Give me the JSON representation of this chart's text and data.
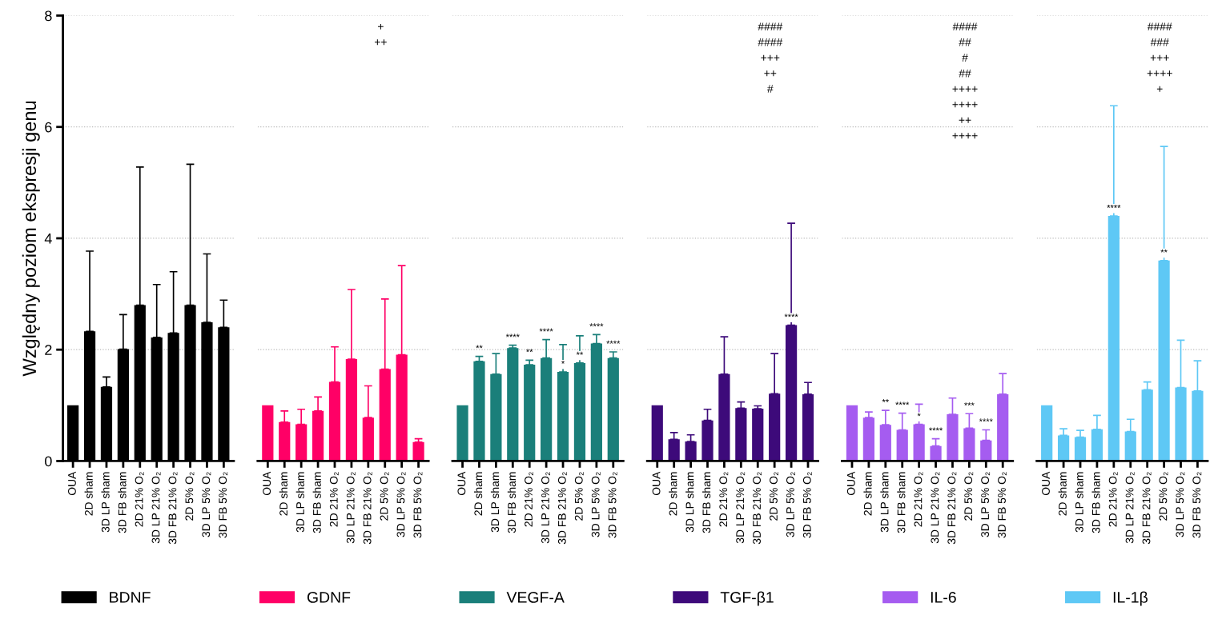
{
  "chart_data": [
    {
      "type": "bar",
      "ylabel": "Względny poziom ekspresji genu",
      "categories": [
        "OUA",
        "2D sham",
        "3D LP sham",
        "3D FB sham",
        "2D 21% O₂",
        "3D LP 21% O₂",
        "3D FB 21% O₂",
        "2D 5% O₂",
        "3D LP 5% O₂",
        "3D FB 5% O₂"
      ],
      "ylim": [
        0,
        8
      ],
      "yticks": [
        0,
        2,
        4,
        6,
        8
      ],
      "grid": "y",
      "legend": "bottom",
      "series": [
        {
          "name": "BDNF",
          "color": "#000000",
          "values": [
            1.0,
            2.33,
            1.33,
            2.01,
            2.8,
            2.22,
            2.3,
            2.8,
            2.49,
            2.4
          ],
          "errors": [
            null,
            [
              2.33,
              3.77
            ],
            [
              1.33,
              1.51
            ],
            [
              2.01,
              2.63
            ],
            [
              2.8,
              5.28
            ],
            [
              2.22,
              3.17
            ],
            [
              2.3,
              3.4
            ],
            [
              2.8,
              5.33
            ],
            [
              2.49,
              3.72
            ],
            [
              2.4,
              2.89
            ]
          ]
        }
      ]
    },
    {
      "type": "bar",
      "categories": [
        "OUA",
        "2D sham",
        "3D LP sham",
        "3D FB sham",
        "2D 21% O₂",
        "3D LP 21% O₂",
        "3D FB 21% O₂",
        "2D 5% O₂",
        "3D LP 5% O₂",
        "3D FB 5% O₂"
      ],
      "ylim": [
        0,
        8
      ],
      "yticks": [
        0,
        2,
        4,
        6,
        8
      ],
      "grid": "y",
      "legend": "bottom",
      "tick_labels": "x",
      "series": [
        {
          "name": "GDNF",
          "color": "#ff0066",
          "values": [
            1.0,
            0.7,
            0.66,
            0.9,
            1.42,
            1.83,
            0.78,
            1.65,
            1.91,
            0.34
          ],
          "errors": [
            null,
            [
              0.7,
              0.9
            ],
            [
              0.66,
              0.93
            ],
            [
              0.9,
              1.15
            ],
            [
              1.42,
              2.05
            ],
            [
              1.83,
              3.08
            ],
            [
              0.78,
              1.35
            ],
            [
              1.65,
              2.91
            ],
            [
              1.91,
              3.51
            ],
            [
              0.34,
              0.4
            ]
          ]
        }
      ],
      "annotations": [
        "+",
        "++"
      ]
    },
    {
      "type": "bar",
      "categories": [
        "OUA",
        "2D sham",
        "3D LP sham",
        "3D FB sham",
        "2D 21% O₂",
        "3D LP 21% O₂",
        "3D FB 21% O₂",
        "2D 5% O₂",
        "3D LP 5% O₂",
        "3D FB 5% O₂"
      ],
      "ylim": [
        0,
        8
      ],
      "yticks": [
        0,
        2,
        4,
        6,
        8
      ],
      "grid": "y",
      "legend": "bottom",
      "tick_labels": "x",
      "series": [
        {
          "name": "VEGF-A",
          "color": "#1a7f7a",
          "values": [
            1.0,
            1.79,
            1.56,
            2.03,
            1.73,
            1.85,
            1.6,
            1.76,
            2.11,
            1.85
          ],
          "errors": [
            null,
            [
              1.79,
              1.88
            ],
            [
              1.56,
              1.93
            ],
            [
              2.03,
              2.08
            ],
            [
              1.73,
              1.81
            ],
            [
              1.85,
              2.18
            ],
            [
              1.6,
              2.09
            ],
            [
              1.76,
              2.25
            ],
            [
              2.11,
              2.27
            ],
            [
              1.85,
              1.96
            ]
          ],
          "value_labels": [
            null,
            "**",
            null,
            "****",
            "**",
            "****",
            "*",
            "**",
            "****",
            "****"
          ]
        }
      ]
    },
    {
      "type": "bar",
      "categories": [
        "OUA",
        "2D sham",
        "3D LP sham",
        "3D FB sham",
        "2D 21% O₂",
        "3D LP 21% O₂",
        "3D FB 21% O₂",
        "2D 5% O₂",
        "3D LP 5% O₂",
        "3D FB 5% O₂"
      ],
      "ylim": [
        0,
        8
      ],
      "yticks": [
        0,
        2,
        4,
        6,
        8
      ],
      "grid": "y",
      "legend": "bottom",
      "tick_labels": "x",
      "series": [
        {
          "name": "TGF-β1",
          "color": "#3d0a7a",
          "values": [
            1.0,
            0.39,
            0.35,
            0.73,
            1.56,
            0.95,
            0.94,
            1.21,
            2.44,
            1.2
          ],
          "errors": [
            null,
            [
              0.39,
              0.51
            ],
            [
              0.35,
              0.47
            ],
            [
              0.73,
              0.93
            ],
            [
              1.56,
              2.23
            ],
            [
              0.95,
              1.06
            ],
            [
              0.94,
              0.99
            ],
            [
              1.21,
              1.93
            ],
            [
              2.44,
              4.27
            ],
            [
              1.2,
              1.41
            ]
          ],
          "value_labels": [
            null,
            null,
            null,
            null,
            null,
            null,
            null,
            null,
            "****",
            null
          ]
        }
      ],
      "annotations": [
        "####",
        "####",
        "+++",
        "++",
        "#"
      ]
    },
    {
      "type": "bar",
      "categories": [
        "OUA",
        "2D sham",
        "3D LP sham",
        "3D FB sham",
        "2D 21% O₂",
        "3D LP 21% O₂",
        "3D FB 21% O₂",
        "2D 5% O₂",
        "3D LP 5% O₂",
        "3D FB 5% O₂"
      ],
      "ylim": [
        0,
        8
      ],
      "yticks": [
        0,
        2,
        4,
        6,
        8
      ],
      "grid": "y",
      "legend": "bottom",
      "tick_labels": "x",
      "series": [
        {
          "name": "IL-6",
          "color": "#a55cf0",
          "values": [
            1.0,
            0.78,
            0.65,
            0.56,
            0.66,
            0.27,
            0.84,
            0.59,
            0.37,
            1.2
          ],
          "errors": [
            null,
            [
              0.78,
              0.88
            ],
            [
              0.65,
              0.91
            ],
            [
              0.56,
              0.86
            ],
            [
              0.66,
              1.02
            ],
            [
              0.27,
              0.4
            ],
            [
              0.84,
              1.13
            ],
            [
              0.59,
              0.85
            ],
            [
              0.37,
              0.56
            ],
            [
              1.2,
              1.57
            ]
          ],
          "value_labels": [
            null,
            null,
            "**",
            "****",
            "*",
            "****",
            null,
            "***",
            "****",
            null
          ]
        }
      ],
      "annotations": [
        "####",
        "##",
        "#",
        "##",
        "++++",
        "++++",
        "++",
        "++++"
      ]
    },
    {
      "type": "bar",
      "categories": [
        "OUA",
        "2D sham",
        "3D LP sham",
        "3D FB sham",
        "2D 21% O₂",
        "3D LP 21% O₂",
        "3D FB 21% O₂",
        "2D 5% O₂",
        "3D LP 5% O₂",
        "3D FB 5% O₂"
      ],
      "ylim": [
        0,
        8
      ],
      "yticks": [
        0,
        2,
        4,
        6,
        8
      ],
      "grid": "y",
      "legend": "bottom",
      "tick_labels": "x",
      "series": [
        {
          "name": "IL-1β",
          "color": "#5ec8f5",
          "values": [
            1.0,
            0.46,
            0.43,
            0.57,
            4.4,
            0.53,
            1.28,
            3.6,
            1.32,
            1.26
          ],
          "errors": [
            null,
            [
              0.46,
              0.58
            ],
            [
              0.43,
              0.55
            ],
            [
              0.57,
              0.82
            ],
            [
              4.4,
              6.38
            ],
            [
              0.53,
              0.75
            ],
            [
              1.28,
              1.42
            ],
            [
              3.6,
              5.65
            ],
            [
              1.32,
              2.17
            ],
            [
              1.26,
              1.8
            ]
          ],
          "value_labels": [
            null,
            null,
            null,
            null,
            "****",
            null,
            null,
            "**",
            null,
            null
          ]
        }
      ],
      "annotations": [
        "####",
        "###",
        "+++",
        "++++",
        "+"
      ]
    }
  ]
}
